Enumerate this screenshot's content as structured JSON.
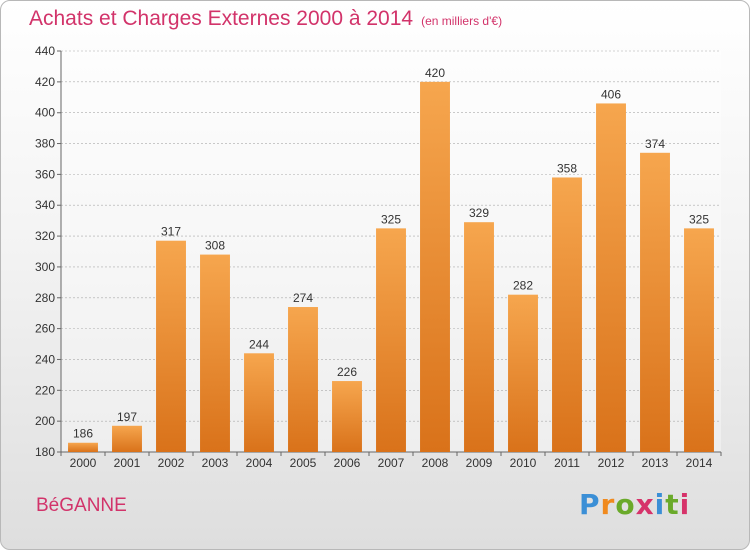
{
  "header": {
    "title": "Achats et Charges Externes 2000 à 2014",
    "subtitle": "(en milliers d'€)"
  },
  "footer": {
    "commune": "BéGANNE",
    "logo_text": "Proxiti"
  },
  "colors": {
    "title": "#d2336a",
    "bar_top": "#f6a64e",
    "bar_bottom": "#d9721a",
    "logo": [
      "#3b8fd6",
      "#f08a1e",
      "#6aaa2a",
      "#d6336a",
      "#3b8fd6",
      "#6aaa2a",
      "#d6336a"
    ]
  },
  "chart_data": {
    "type": "bar",
    "categories": [
      "2000",
      "2001",
      "2002",
      "2003",
      "2004",
      "2005",
      "2006",
      "2007",
      "2008",
      "2009",
      "2010",
      "2011",
      "2012",
      "2013",
      "2014"
    ],
    "values": [
      186,
      197,
      317,
      308,
      244,
      274,
      226,
      325,
      420,
      329,
      282,
      358,
      406,
      374,
      325
    ],
    "ylim": [
      180,
      440
    ],
    "yticks": [
      180,
      200,
      220,
      240,
      260,
      280,
      300,
      320,
      340,
      360,
      380,
      400,
      420,
      440
    ],
    "grid": true,
    "legend": "none"
  }
}
